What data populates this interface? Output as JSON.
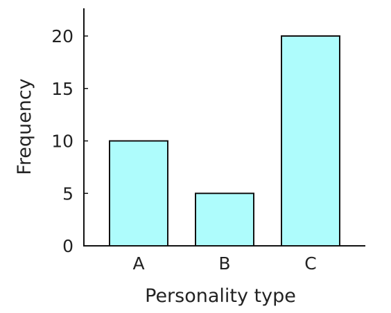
{
  "chart_data": {
    "type": "bar",
    "categories": [
      "A",
      "B",
      "C"
    ],
    "values": [
      10,
      5,
      20
    ],
    "xlabel": "Personality type",
    "ylabel": "Frequency",
    "ylim": [
      0,
      22.5
    ],
    "yticks": [
      0,
      5,
      10,
      15,
      20
    ],
    "grid": false,
    "bar_color": "#aefcfc",
    "bar_edge_color": "#111111"
  }
}
